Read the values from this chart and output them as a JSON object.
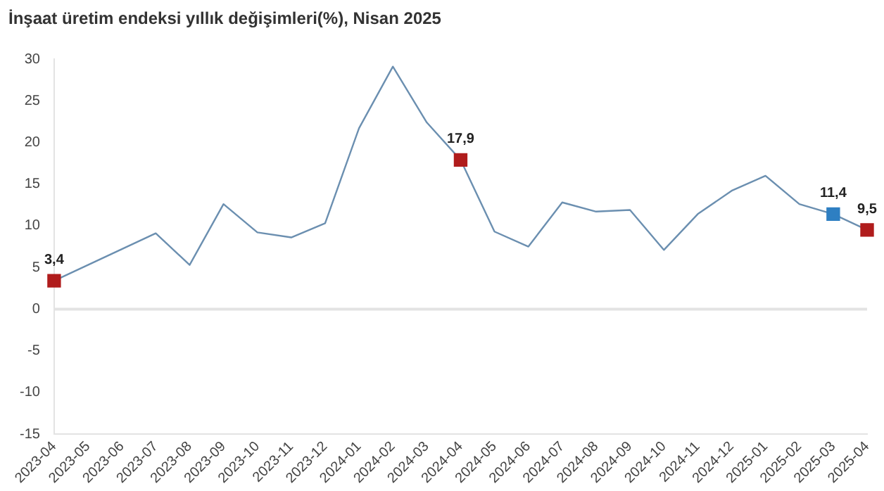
{
  "chart_data": {
    "type": "line",
    "title": "İnşaat üretim endeksi yıllık değişimleri(%), Nisan 2025",
    "categories": [
      "2023-04",
      "2023-05",
      "2023-06",
      "2023-07",
      "2023-08",
      "2023-09",
      "2023-10",
      "2023-11",
      "2023-12",
      "2024-01",
      "2024-02",
      "2024-03",
      "2024-04",
      "2024-05",
      "2024-06",
      "2024-07",
      "2024-08",
      "2024-09",
      "2024-10",
      "2024-11",
      "2024-12",
      "2025-01",
      "2025-02",
      "2025-03",
      "2025-04"
    ],
    "series": [
      {
        "color": "#6b8fb0",
        "values": [
          3.4,
          5.3,
          7.2,
          9.1,
          5.3,
          12.6,
          9.2,
          8.6,
          10.3,
          21.7,
          29.1,
          22.4,
          17.9,
          9.3,
          7.5,
          12.8,
          11.7,
          11.9,
          7.1,
          11.4,
          14.2,
          16.0,
          12.6,
          11.4,
          9.5
        ],
        "colors": [
          "#b01c1c",
          null,
          null,
          null,
          null,
          null,
          null,
          null,
          null,
          null,
          null,
          null,
          "#b01c1c",
          null,
          null,
          null,
          null,
          null,
          null,
          null,
          null,
          null,
          null,
          "#2e7fc2",
          "#b01c1c"
        ],
        "value_labels": [
          "3,4",
          null,
          null,
          null,
          null,
          null,
          null,
          null,
          null,
          null,
          null,
          null,
          "17,9",
          null,
          null,
          null,
          null,
          null,
          null,
          null,
          null,
          null,
          null,
          "11,4",
          "9,5"
        ]
      }
    ],
    "ylim": [
      -15,
      30
    ],
    "yticks": [
      -15,
      -10,
      -5,
      0,
      5,
      10,
      15,
      20,
      25,
      30
    ],
    "grid": false,
    "legend": false,
    "ref_lines": [
      {
        "axis": "y",
        "value": 0,
        "color": "#e3e3e3"
      }
    ]
  }
}
